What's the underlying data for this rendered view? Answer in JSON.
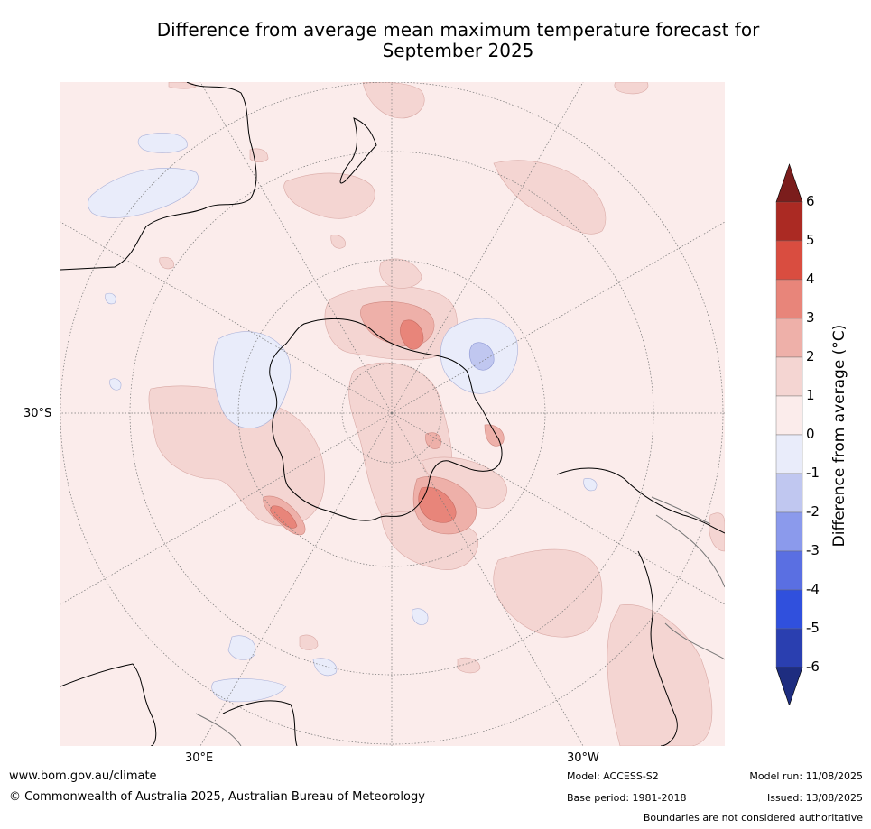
{
  "title_line1": "Difference from average mean maximum temperature forecast for",
  "title_line2": "September 2025",
  "map": {
    "latitude_label": "30°S",
    "longitude_labels": [
      "30°E",
      "30°W"
    ],
    "background_color": "#fbeceb",
    "coast_color": "#000000",
    "grid_color": "#777777"
  },
  "colorbar": {
    "title": "Difference from average (°C)",
    "ticks": [
      "6",
      "5",
      "4",
      "3",
      "2",
      "1",
      "0",
      "-1",
      "-2",
      "-3",
      "-4",
      "-5",
      "-6"
    ],
    "colors": [
      "#7b1d1c",
      "#ab2a23",
      "#d94d40",
      "#e8857a",
      "#eeb0a9",
      "#f4d5d2",
      "#fbeceb",
      "#e9ecfa",
      "#c0c7f0",
      "#8b9aec",
      "#5a6fe2",
      "#3050dd",
      "#2a3fb0",
      "#1e2d80"
    ]
  },
  "footer": {
    "website": "www.bom.gov.au/climate",
    "copyright": "© Commonwealth of Australia 2025, Australian Bureau of Meteorology",
    "model": "Model: ACCESS-S2",
    "base_period": "Base period: 1981-2018",
    "model_run": "Model run: 11/08/2025",
    "issued": "Issued: 13/08/2025",
    "disclaimer": "Boundaries are not considered authoritative"
  }
}
